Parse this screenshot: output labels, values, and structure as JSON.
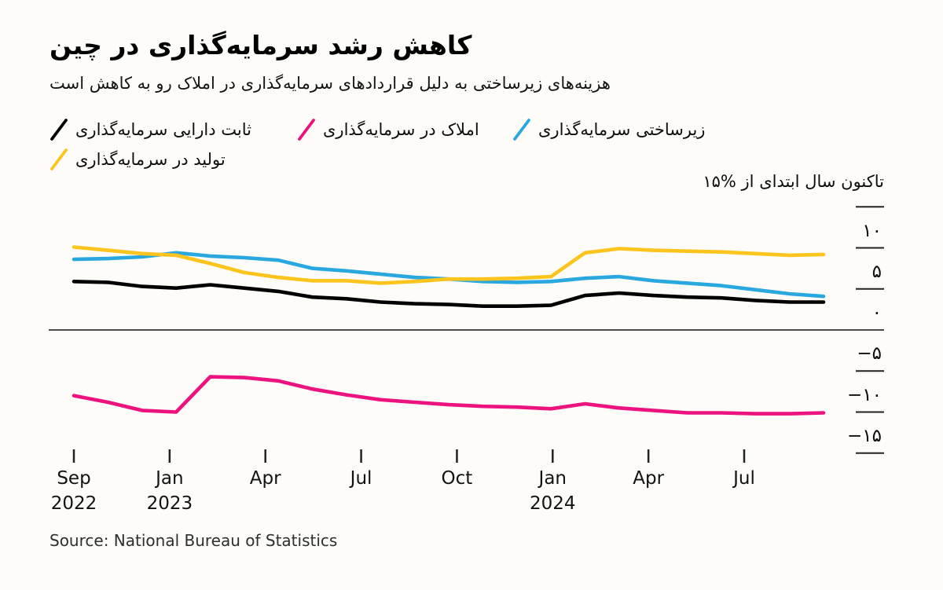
{
  "title": "کاهش رشد سرمایه‌گذاری در چین",
  "subtitle": "هزینه‌های زیرساختی به دلیل قراردادهای سرمایه‌گذاری در املاک رو به کاهش است",
  "legend": {
    "items": [
      {
        "label": "سرمایه‌گذاری دارایی ثابت",
        "color": "#000000"
      },
      {
        "label": "سرمایه‌گذاری در املاک",
        "color": "#ed137f"
      },
      {
        "label": "سرمایه‌گذاری زیرساختی",
        "color": "#29a8e0"
      },
      {
        "label": "سرمایه‌گذاری در تولید",
        "color": "#fcc41c"
      }
    ]
  },
  "y_axis": {
    "title": "۱۵% از ابتدای سال تاکنون",
    "ticks": [
      {
        "value": 15,
        "label": ""
      },
      {
        "value": 10,
        "label": "۱۰"
      },
      {
        "value": 5,
        "label": "۵"
      },
      {
        "value": 0,
        "label": "۰"
      },
      {
        "value": -5,
        "label": "−۵"
      },
      {
        "value": -10,
        "label": "−۱۰"
      },
      {
        "value": -15,
        "label": "−۱۵"
      }
    ]
  },
  "x_axis": {
    "ticks": [
      {
        "month": "Sep",
        "year": "2022"
      },
      {
        "month": "Jan",
        "year": "2023"
      },
      {
        "month": "Apr",
        "year": ""
      },
      {
        "month": "Jul",
        "year": ""
      },
      {
        "month": "Oct",
        "year": ""
      },
      {
        "month": "Jan",
        "year": "2024"
      },
      {
        "month": "Apr",
        "year": ""
      },
      {
        "month": "Jul",
        "year": ""
      }
    ]
  },
  "source": "Source: National Bureau of Statistics",
  "colors": {
    "background": "#fdfcf9",
    "zero_line": "#4b4b4b",
    "tick": "#222222",
    "fixed_asset": "#000000",
    "property": "#ed137f",
    "infrastructure": "#29a8e0",
    "manufacturing": "#fcc41c"
  },
  "chart_data": {
    "type": "line",
    "title": "کاهش رشد سرمایه‌گذاری در چین",
    "subtitle": "هزینه‌های زیرساختی به دلیل قراردادهای سرمایه‌گذاری در املاک رو به کاهش است",
    "ylabel": "۱۵% از ابتدای سال تاکنون",
    "unit": "percent, year-to-date",
    "ylim": [
      -15,
      15
    ],
    "grid": false,
    "legend_position": "top",
    "x": [
      "Sep 2022",
      "Oct 2022",
      "Nov 2022",
      "Dec 2022",
      "Feb 2023",
      "Mar 2023",
      "Apr 2023",
      "May 2023",
      "Jun 2023",
      "Jul 2023",
      "Aug 2023",
      "Sep 2023",
      "Oct 2023",
      "Nov 2023",
      "Dec 2023",
      "Feb 2024",
      "Mar 2024",
      "Apr 2024",
      "May 2024",
      "Jun 2024",
      "Jul 2024",
      "Aug 2024",
      "Sep 2024"
    ],
    "x_tick_labels": [
      "Sep 2022",
      "Jan 2023",
      "Apr",
      "Jul",
      "Oct",
      "Jan 2024",
      "Apr",
      "Jul"
    ],
    "series": [
      {
        "name": "سرمایه‌گذاری دارایی ثابت",
        "color": "#000000",
        "values": [
          5.9,
          5.8,
          5.3,
          5.1,
          5.5,
          5.1,
          4.7,
          4.0,
          3.8,
          3.4,
          3.2,
          3.1,
          2.9,
          2.9,
          3.0,
          4.2,
          4.5,
          4.2,
          4.0,
          3.9,
          3.6,
          3.4,
          3.4
        ]
      },
      {
        "name": "سرمایه‌گذاری در املاک",
        "color": "#ed137f",
        "values": [
          -8.0,
          -8.8,
          -9.8,
          -10.0,
          -5.7,
          -5.8,
          -6.2,
          -7.2,
          -7.9,
          -8.5,
          -8.8,
          -9.1,
          -9.3,
          -9.4,
          -9.6,
          -9.0,
          -9.5,
          -9.8,
          -10.1,
          -10.1,
          -10.2,
          -10.2,
          -10.1
        ]
      },
      {
        "name": "سرمایه‌گذاری زیرساختی",
        "color": "#29a8e0",
        "values": [
          8.6,
          8.7,
          8.9,
          9.4,
          9.0,
          8.8,
          8.5,
          7.5,
          7.2,
          6.8,
          6.4,
          6.2,
          5.9,
          5.8,
          5.9,
          6.3,
          6.5,
          6.0,
          5.7,
          5.4,
          4.9,
          4.4,
          4.1
        ]
      },
      {
        "name": "سرمایه‌گذاری در تولید",
        "color": "#fcc41c",
        "values": [
          10.1,
          9.7,
          9.3,
          9.1,
          8.1,
          7.0,
          6.4,
          6.0,
          6.0,
          5.7,
          5.9,
          6.2,
          6.2,
          6.3,
          6.5,
          9.4,
          9.9,
          9.7,
          9.6,
          9.5,
          9.3,
          9.1,
          9.2
        ]
      }
    ]
  }
}
